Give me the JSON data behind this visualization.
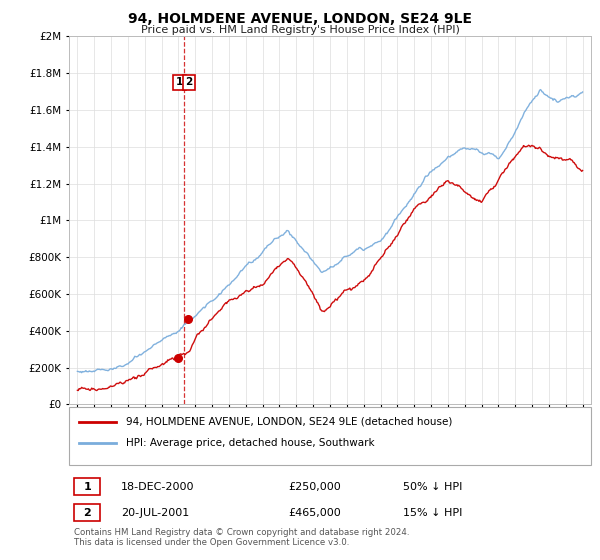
{
  "title": "94, HOLMDENE AVENUE, LONDON, SE24 9LE",
  "subtitle": "Price paid vs. HM Land Registry's House Price Index (HPI)",
  "legend_label1": "94, HOLMDENE AVENUE, LONDON, SE24 9LE (detached house)",
  "legend_label2": "HPI: Average price, detached house, Southwark",
  "sale1_label": "1",
  "sale1_date": "18-DEC-2000",
  "sale1_price": "£250,000",
  "sale1_hpi": "50% ↓ HPI",
  "sale2_label": "2",
  "sale2_date": "20-JUL-2001",
  "sale2_price": "£465,000",
  "sale2_hpi": "15% ↓ HPI",
  "footnote": "Contains HM Land Registry data © Crown copyright and database right 2024.\nThis data is licensed under the Open Government Licence v3.0.",
  "line1_color": "#cc0000",
  "line2_color": "#7aaddc",
  "sale1_x": 2000.97,
  "sale1_y": 250000,
  "sale2_x": 2001.55,
  "sale2_y": 465000,
  "vline_x": 2001.3,
  "ylim_min": 0,
  "ylim_max": 2000000,
  "xlim_min": 1994.5,
  "xlim_max": 2025.5,
  "background_color": "#ffffff",
  "grid_color": "#dddddd",
  "yticks": [
    0,
    200000,
    400000,
    600000,
    800000,
    1000000,
    1200000,
    1400000,
    1600000,
    1800000,
    2000000
  ],
  "xticks": [
    1995,
    1996,
    1997,
    1998,
    1999,
    2000,
    2001,
    2002,
    2003,
    2004,
    2005,
    2006,
    2007,
    2008,
    2009,
    2010,
    2011,
    2012,
    2013,
    2014,
    2015,
    2016,
    2017,
    2018,
    2019,
    2020,
    2021,
    2022,
    2023,
    2024,
    2025
  ]
}
